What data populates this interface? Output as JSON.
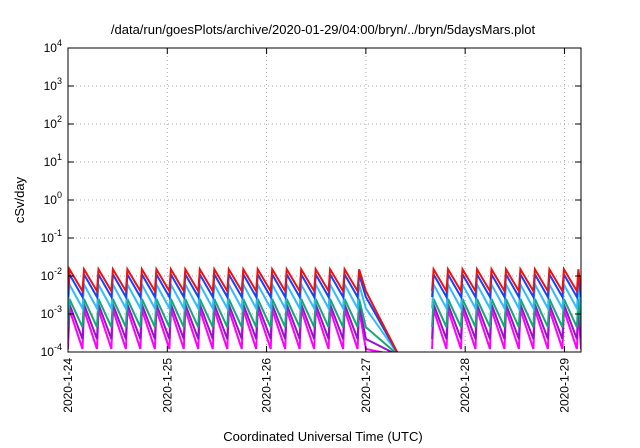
{
  "chart_data": {
    "type": "line",
    "title": "/data/run/goesPlots/archive/2020-01-29/04:00/bryn/../bryn/5daysMars.plot",
    "xlabel": "Coordinated Universal Time (UTC)",
    "ylabel": "cSv/day",
    "yscale": "log",
    "ylim": [
      0.0001,
      10000
    ],
    "y_tick_labels": [
      {
        "value": 0.0001,
        "base": "10",
        "exp": "-4"
      },
      {
        "value": 0.001,
        "base": "10",
        "exp": "-3"
      },
      {
        "value": 0.01,
        "base": "10",
        "exp": "-2"
      },
      {
        "value": 0.1,
        "base": "10",
        "exp": "-1"
      },
      {
        "value": 1,
        "base": "10",
        "exp": "0"
      },
      {
        "value": 10,
        "base": "10",
        "exp": "1"
      },
      {
        "value": 100,
        "base": "10",
        "exp": "2"
      },
      {
        "value": 1000,
        "base": "10",
        "exp": "3"
      },
      {
        "value": 10000,
        "base": "10",
        "exp": "4"
      }
    ],
    "xlim": [
      "2020-01-24T00:00",
      "2020-01-29T04:00"
    ],
    "x_tick_labels": [
      "2020-1-24",
      "2020-1-25",
      "2020-1-26",
      "2020-1-27",
      "2020-1-28",
      "2020-1-29"
    ],
    "x_tick_dates": [
      "2020-01-24T00:00",
      "2020-01-25T00:00",
      "2020-01-26T00:00",
      "2020-01-27T00:00",
      "2020-01-28T00:00",
      "2020-01-29T00:00"
    ],
    "grid": true,
    "legend": "none",
    "sawtooth": {
      "segments": [
        {
          "start": "2020-01-24T00:00",
          "end": "2020-01-27T00:00"
        },
        {
          "start": "2020-01-27T16:00",
          "end": "2020-01-29T04:00"
        }
      ],
      "period_hours": 3.5,
      "decay_end": {
        "start": "2020-01-27T00:00",
        "end": "2020-01-27T08:00"
      }
    },
    "series": [
      {
        "color": "#ee1111",
        "peak": 0.015,
        "trough": 0.004
      },
      {
        "color": "#1144ff",
        "peak": 0.011,
        "trough": 0.0028
      },
      {
        "color": "#33bbff",
        "peak": 0.006,
        "trough": 0.0014
      },
      {
        "color": "#11aa77",
        "peak": 0.0025,
        "trough": 0.00045
      },
      {
        "color": "#9911cc",
        "peak": 0.0018,
        "trough": 0.00022
      },
      {
        "color": "#ff00ff",
        "peak": 0.0013,
        "trough": 0.00012
      }
    ]
  }
}
